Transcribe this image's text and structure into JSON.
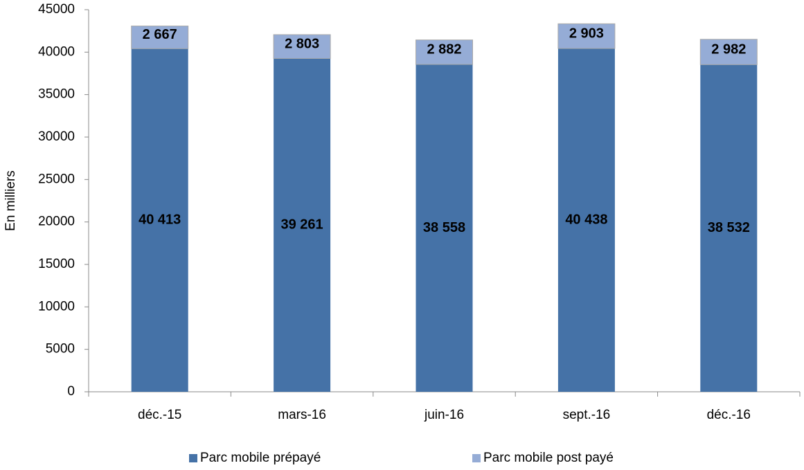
{
  "chart_data": {
    "type": "stacked_bar",
    "y_label": "En milliers",
    "categories": [
      "déc.-15",
      "mars-16",
      "juin-16",
      "sept.-16",
      "déc.-16"
    ],
    "series": [
      {
        "name": "Parc mobile prépayé",
        "color": "#4572a7",
        "values": [
          40413,
          39261,
          38558,
          40438,
          38532
        ],
        "value_labels": [
          "40 413",
          "39 261",
          "38 558",
          "40 438",
          "38 532"
        ]
      },
      {
        "name": "Parc mobile post payé",
        "color": "#95acd6",
        "values": [
          2667,
          2803,
          2882,
          2903,
          2982
        ],
        "value_labels": [
          "2 667",
          "2 803",
          "2 882",
          "2 903",
          "2 982"
        ]
      }
    ],
    "ylim": [
      0,
      45000
    ],
    "yticks": [
      0,
      5000,
      10000,
      15000,
      20000,
      25000,
      30000,
      35000,
      40000,
      45000
    ],
    "legend": "bottom"
  }
}
